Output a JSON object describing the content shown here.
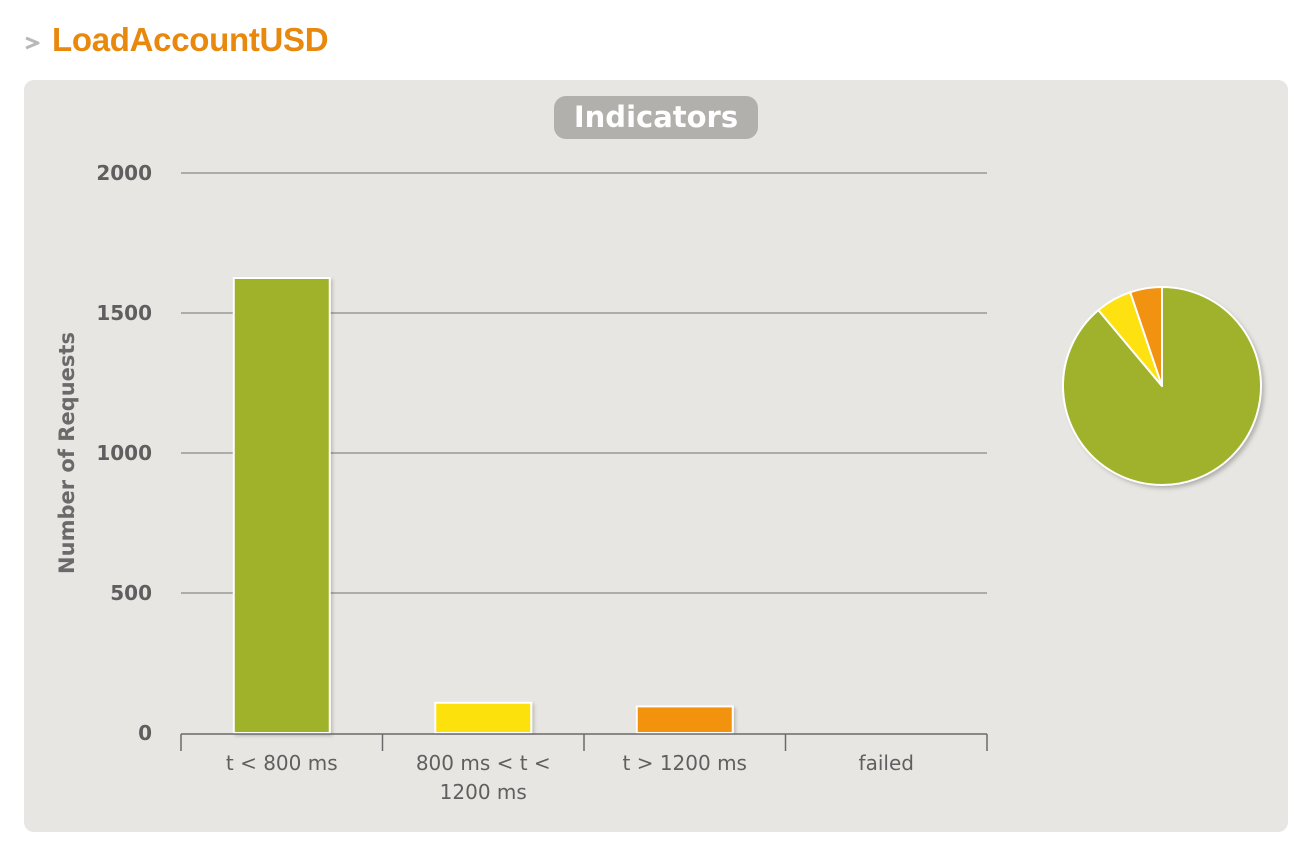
{
  "header": {
    "title": "LoadAccountUSD",
    "icon": "chevron-right-icon"
  },
  "chart_data": {
    "type": "bar",
    "title": "Indicators",
    "categories": [
      [
        "t < 800 ms"
      ],
      [
        "800 ms < t <",
        "1200 ms"
      ],
      [
        "t > 1200 ms"
      ],
      [
        "failed"
      ]
    ],
    "values": [
      1625,
      108,
      95,
      0
    ],
    "colors": [
      "#a0b22b",
      "#fde111",
      "#f29211",
      "#f15b4f"
    ],
    "xlabel": "",
    "ylabel": "Number of Requests",
    "ylim": [
      0,
      2000
    ],
    "yticks": [
      0,
      500,
      1000,
      1500,
      2000
    ],
    "grid": true,
    "pie": {
      "type": "pie",
      "labels": [
        "t < 800 ms",
        "800 ms < t < 1200 ms",
        "t > 1200 ms",
        "failed"
      ],
      "values": [
        1625,
        108,
        95,
        0
      ]
    }
  }
}
